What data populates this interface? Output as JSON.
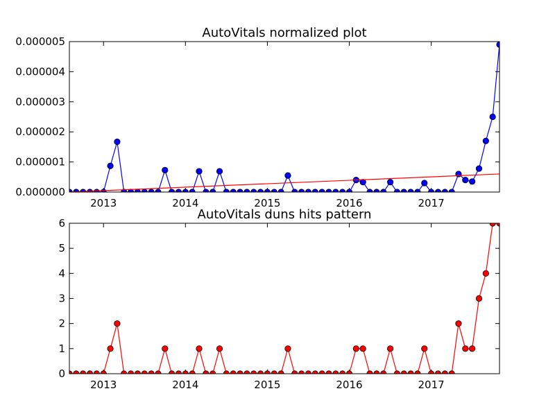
{
  "chart_data": [
    {
      "type": "line",
      "title": "AutoVitals normalized plot",
      "xlabel": "",
      "ylabel": "",
      "x_range": [
        "2012-08",
        "2017-11"
      ],
      "ylim": [
        0,
        5e-06
      ],
      "y_ticks": [
        "0.000000",
        "0.000001",
        "0.000002",
        "0.000003",
        "0.000004",
        "0.000005"
      ],
      "x_ticks": [
        "2013",
        "2014",
        "2015",
        "2016",
        "2017"
      ],
      "grid": false,
      "x": [
        "2012-08",
        "2012-09",
        "2012-10",
        "2012-11",
        "2012-12",
        "2013-01",
        "2013-02",
        "2013-03",
        "2013-04",
        "2013-05",
        "2013-06",
        "2013-07",
        "2013-08",
        "2013-09",
        "2013-10",
        "2013-11",
        "2013-12",
        "2014-01",
        "2014-02",
        "2014-03",
        "2014-04",
        "2014-05",
        "2014-06",
        "2014-07",
        "2014-08",
        "2014-09",
        "2014-10",
        "2014-11",
        "2014-12",
        "2015-01",
        "2015-02",
        "2015-03",
        "2015-04",
        "2015-05",
        "2015-06",
        "2015-07",
        "2015-08",
        "2015-09",
        "2015-10",
        "2015-11",
        "2015-12",
        "2016-01",
        "2016-02",
        "2016-03",
        "2016-04",
        "2016-05",
        "2016-06",
        "2016-07",
        "2016-08",
        "2016-09",
        "2016-10",
        "2016-11",
        "2016-12",
        "2017-01",
        "2017-02",
        "2017-03",
        "2017-04",
        "2017-05",
        "2017-06",
        "2017-07",
        "2017-08",
        "2017-09",
        "2017-10",
        "2017-11"
      ],
      "series": [
        {
          "color": "#0000ff",
          "marker": "circle",
          "values": [
            0,
            0,
            0,
            0,
            0,
            0,
            8.7e-07,
            1.67e-06,
            0,
            0,
            0,
            0,
            0,
            0,
            7.3e-07,
            0,
            0,
            0,
            0,
            6.9e-07,
            0,
            0,
            6.9e-07,
            0,
            0,
            0,
            0,
            0,
            0,
            0,
            0,
            0,
            5.5e-07,
            0,
            0,
            0,
            0,
            0,
            0,
            0,
            0,
            0,
            4e-07,
            3.3e-07,
            0,
            0,
            0,
            3.3e-07,
            0,
            0,
            0,
            0,
            3e-07,
            0,
            0,
            0,
            0,
            6e-07,
            4e-07,
            3.5e-07,
            7.8e-07,
            1.7e-06,
            2.5e-06,
            4.9e-06
          ]
        },
        {
          "color": "#ff0000",
          "marker": "none",
          "values_at_ends": [
            0,
            6e-07
          ]
        }
      ]
    },
    {
      "type": "line",
      "title": "AutoVitals duns hits pattern",
      "xlabel": "",
      "ylabel": "",
      "x_range": [
        "2012-08",
        "2017-11"
      ],
      "ylim": [
        0,
        6
      ],
      "y_ticks": [
        "0",
        "1",
        "2",
        "3",
        "4",
        "5",
        "6"
      ],
      "x_ticks": [
        "2013",
        "2014",
        "2015",
        "2016",
        "2017"
      ],
      "grid": false,
      "x": [
        "2012-08",
        "2012-09",
        "2012-10",
        "2012-11",
        "2012-12",
        "2013-01",
        "2013-02",
        "2013-03",
        "2013-04",
        "2013-05",
        "2013-06",
        "2013-07",
        "2013-08",
        "2013-09",
        "2013-10",
        "2013-11",
        "2013-12",
        "2014-01",
        "2014-02",
        "2014-03",
        "2014-04",
        "2014-05",
        "2014-06",
        "2014-07",
        "2014-08",
        "2014-09",
        "2014-10",
        "2014-11",
        "2014-12",
        "2015-01",
        "2015-02",
        "2015-03",
        "2015-04",
        "2015-05",
        "2015-06",
        "2015-07",
        "2015-08",
        "2015-09",
        "2015-10",
        "2015-11",
        "2015-12",
        "2016-01",
        "2016-02",
        "2016-03",
        "2016-04",
        "2016-05",
        "2016-06",
        "2016-07",
        "2016-08",
        "2016-09",
        "2016-10",
        "2016-11",
        "2016-12",
        "2017-01",
        "2017-02",
        "2017-03",
        "2017-04",
        "2017-05",
        "2017-06",
        "2017-07",
        "2017-08",
        "2017-09",
        "2017-10",
        "2017-11"
      ],
      "series": [
        {
          "color": "#ff0000",
          "marker": "circle",
          "values": [
            0,
            0,
            0,
            0,
            0,
            0,
            1,
            2,
            0,
            0,
            0,
            0,
            0,
            0,
            1,
            0,
            0,
            0,
            0,
            1,
            0,
            0,
            1,
            0,
            0,
            0,
            0,
            0,
            0,
            0,
            0,
            0,
            1,
            0,
            0,
            0,
            0,
            0,
            0,
            0,
            0,
            0,
            1,
            1,
            0,
            0,
            0,
            1,
            0,
            0,
            0,
            0,
            1,
            0,
            0,
            0,
            0,
            2,
            1,
            1,
            3,
            4,
            6,
            6
          ]
        }
      ]
    }
  ]
}
